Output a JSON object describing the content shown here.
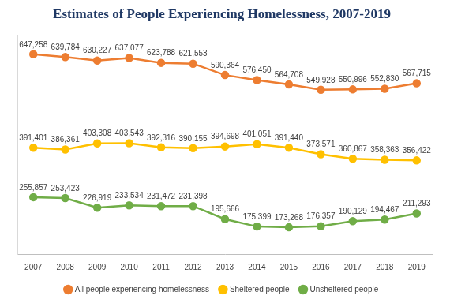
{
  "chart_data": {
    "type": "line",
    "title": "Estimates of People Experiencing Homelessness, 2007-2019",
    "categories": [
      "2007",
      "2008",
      "2009",
      "2010",
      "2011",
      "2012",
      "2013",
      "2014",
      "2015",
      "2016",
      "2017",
      "2018",
      "2019"
    ],
    "series": [
      {
        "name": "All people experiencing homelessness",
        "color": "#ED7D31",
        "marker": "circle",
        "values": [
          647258,
          639784,
          630227,
          637077,
          623788,
          621553,
          590364,
          576450,
          564708,
          549928,
          550996,
          552830,
          567715
        ],
        "value_labels": [
          "647,258",
          "639,784",
          "630,227",
          "637,077",
          "623,788",
          "621,553",
          "590,364",
          "576,450",
          "564,708",
          "549,928",
          "550,996",
          "552,830",
          "567,715"
        ]
      },
      {
        "name": "Sheltered people",
        "color": "#FFC000",
        "marker": "circle",
        "values": [
          391401,
          386361,
          403308,
          403543,
          392316,
          390155,
          394698,
          401051,
          391440,
          373571,
          360867,
          358363,
          356422
        ],
        "value_labels": [
          "391,401",
          "386,361",
          "403,308",
          "403,543",
          "392,316",
          "390,155",
          "394,698",
          "401,051",
          "391,440",
          "373,571",
          "360,867",
          "358,363",
          "356,422"
        ]
      },
      {
        "name": "Unsheltered people",
        "color": "#70AD47",
        "marker": "circle",
        "values": [
          255857,
          253423,
          226919,
          233534,
          231472,
          231398,
          195666,
          175399,
          173268,
          176357,
          190129,
          194467,
          211293
        ],
        "value_labels": [
          "255,857",
          "253,423",
          "226,919",
          "233,534",
          "231,472",
          "231,398",
          "195,666",
          "175,399",
          "173,268",
          "176,357",
          "190,129",
          "194,467",
          "211,293"
        ]
      }
    ],
    "ylim": [
      100000,
      700000
    ],
    "grid": false,
    "legend": "bottom",
    "data_labels": true,
    "tick_labels": "x"
  }
}
